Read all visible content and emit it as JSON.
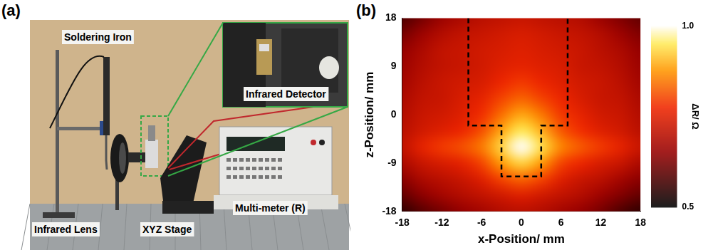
{
  "photo": {
    "label": "(a)",
    "annotations": [
      "Soldering Iron",
      "Infrared Detector",
      "Infrared Lens",
      "XYZ Stage",
      "Multi-meter (R)"
    ]
  },
  "chart_data": {
    "type": "heatmap",
    "title": "(b)",
    "x_label": "x-Position/ mm",
    "y_label": "z-Position/ mm",
    "x": [
      -18,
      -15,
      -12,
      -9,
      -6,
      -3,
      0,
      3,
      6,
      9,
      12,
      15,
      18
    ],
    "y": [
      18,
      15,
      12,
      9,
      6,
      3,
      0,
      -3,
      -6,
      -9,
      -12,
      -15,
      -18
    ],
    "values": [
      [
        0.58,
        0.62,
        0.66,
        0.68,
        0.7,
        0.71,
        0.72,
        0.71,
        0.7,
        0.69,
        0.66,
        0.63,
        0.6
      ],
      [
        0.62,
        0.66,
        0.69,
        0.71,
        0.72,
        0.73,
        0.74,
        0.73,
        0.72,
        0.71,
        0.69,
        0.66,
        0.63
      ],
      [
        0.65,
        0.68,
        0.71,
        0.72,
        0.73,
        0.74,
        0.75,
        0.74,
        0.73,
        0.72,
        0.7,
        0.68,
        0.65
      ],
      [
        0.66,
        0.69,
        0.71,
        0.72,
        0.73,
        0.75,
        0.76,
        0.75,
        0.74,
        0.72,
        0.71,
        0.69,
        0.66
      ],
      [
        0.67,
        0.7,
        0.72,
        0.73,
        0.74,
        0.77,
        0.79,
        0.77,
        0.75,
        0.73,
        0.72,
        0.7,
        0.67
      ],
      [
        0.68,
        0.71,
        0.72,
        0.74,
        0.76,
        0.8,
        0.83,
        0.8,
        0.77,
        0.74,
        0.72,
        0.71,
        0.68
      ],
      [
        0.69,
        0.72,
        0.73,
        0.75,
        0.78,
        0.84,
        0.89,
        0.85,
        0.79,
        0.76,
        0.73,
        0.72,
        0.69
      ],
      [
        0.7,
        0.73,
        0.75,
        0.77,
        0.81,
        0.89,
        0.95,
        0.9,
        0.82,
        0.78,
        0.75,
        0.73,
        0.7
      ],
      [
        0.71,
        0.76,
        0.79,
        0.81,
        0.85,
        0.93,
        1.0,
        0.94,
        0.86,
        0.82,
        0.79,
        0.76,
        0.72
      ],
      [
        0.68,
        0.72,
        0.74,
        0.76,
        0.8,
        0.88,
        0.93,
        0.88,
        0.8,
        0.77,
        0.74,
        0.72,
        0.68
      ],
      [
        0.64,
        0.68,
        0.7,
        0.72,
        0.75,
        0.8,
        0.83,
        0.8,
        0.75,
        0.72,
        0.7,
        0.67,
        0.64
      ],
      [
        0.6,
        0.64,
        0.67,
        0.69,
        0.71,
        0.73,
        0.75,
        0.73,
        0.71,
        0.69,
        0.66,
        0.63,
        0.6
      ],
      [
        0.55,
        0.59,
        0.62,
        0.65,
        0.67,
        0.69,
        0.7,
        0.69,
        0.67,
        0.65,
        0.62,
        0.58,
        0.55
      ]
    ],
    "xlim": [
      -18,
      18
    ],
    "ylim": [
      -18,
      18
    ],
    "xticks": [
      -18,
      -12,
      -6,
      0,
      6,
      12,
      18
    ],
    "yticks": [
      -18,
      -9,
      0,
      9,
      18
    ],
    "grid": false,
    "colorbar": {
      "label": "ΔR/ Ω",
      "range": [
        0.5,
        1.0
      ],
      "ticks": [
        0.5,
        {
          "value": 1,
          "label": "1.0"
        }
      ]
    },
    "annotations": [
      {
        "type": "outline",
        "line_style": "dashed",
        "color": "#000000",
        "points": [
          [
            -8,
            18
          ],
          [
            -8,
            -2
          ],
          [
            -3,
            -2
          ],
          [
            -3,
            -11.5
          ],
          [
            3,
            -11.5
          ],
          [
            3,
            -2
          ],
          [
            7,
            -2
          ],
          [
            7,
            18
          ]
        ]
      }
    ]
  }
}
